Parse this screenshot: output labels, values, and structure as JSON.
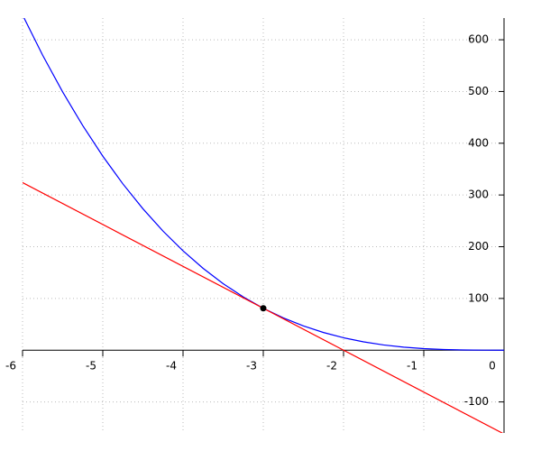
{
  "chart_data": {
    "type": "line",
    "xlim": [
      -6,
      0
    ],
    "ylim": [
      -160,
      642
    ],
    "xticks": [
      -6,
      -5,
      -4,
      -3,
      -2,
      -1,
      0
    ],
    "yticks": [
      -100,
      100,
      200,
      300,
      400,
      500,
      600
    ],
    "grid": true,
    "series": [
      {
        "color": "#0000ff",
        "x": [
          -6,
          -5.75,
          -5.5,
          -5.25,
          -5,
          -4.75,
          -4.5,
          -4.25,
          -4,
          -3.75,
          -3.5,
          -3.25,
          -3,
          -2.75,
          -2.5,
          -2.25,
          -2,
          -1.75,
          -1.5,
          -1.25,
          -1,
          -0.75,
          -0.5,
          -0.25,
          0
        ],
        "values": [
          648,
          570.33,
          499.13,
          434.11,
          375,
          321.52,
          273.38,
          230.3,
          192,
          158.2,
          128.63,
          102.98,
          81,
          62.39,
          46.88,
          34.17,
          24,
          16.08,
          10.13,
          5.86,
          3,
          1.27,
          0.38,
          0.05,
          0
        ]
      },
      {
        "color": "#ff0000",
        "x": [
          -6,
          0
        ],
        "values": [
          324,
          -162
        ]
      },
      {
        "color": "#000000",
        "style": "point",
        "x": [
          -3
        ],
        "values": [
          81
        ]
      }
    ]
  }
}
